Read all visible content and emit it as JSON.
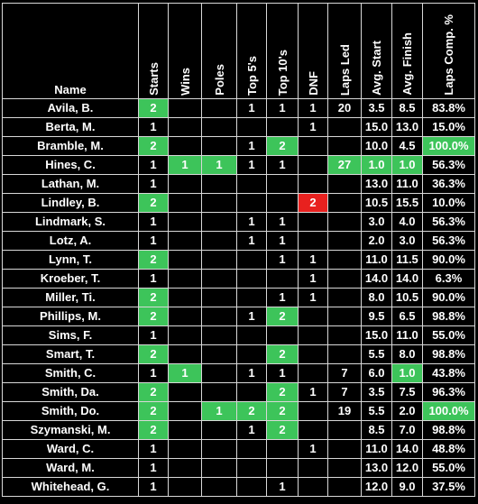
{
  "columns": [
    "Name",
    "Starts",
    "Wins",
    "Poles",
    "Top 5's",
    "Top 10's",
    "DNF",
    "Laps Led",
    "Avg. Start",
    "Avg. Finish",
    "Laps Comp. %"
  ],
  "highlight_colors": {
    "leader": "#3dc45a",
    "worst": "#e8211f"
  },
  "rows": [
    {
      "name": "Avila, B.",
      "starts": "2",
      "wins": "",
      "poles": "",
      "top5": "1",
      "top10": "1",
      "dnf": "1",
      "laps_led": "20",
      "avg_start": "3.5",
      "avg_finish": "8.5",
      "laps_comp": "83.8%",
      "hl": {
        "starts": "green"
      }
    },
    {
      "name": "Berta, M.",
      "starts": "1",
      "wins": "",
      "poles": "",
      "top5": "",
      "top10": "",
      "dnf": "1",
      "laps_led": "",
      "avg_start": "15.0",
      "avg_finish": "13.0",
      "laps_comp": "15.0%",
      "hl": {}
    },
    {
      "name": "Bramble, M.",
      "starts": "2",
      "wins": "",
      "poles": "",
      "top5": "1",
      "top10": "2",
      "dnf": "",
      "laps_led": "",
      "avg_start": "10.0",
      "avg_finish": "4.5",
      "laps_comp": "100.0%",
      "hl": {
        "starts": "green",
        "top10": "green",
        "laps_comp": "green"
      }
    },
    {
      "name": "Hines, C.",
      "starts": "1",
      "wins": "1",
      "poles": "1",
      "top5": "1",
      "top10": "1",
      "dnf": "",
      "laps_led": "27",
      "avg_start": "1.0",
      "avg_finish": "1.0",
      "laps_comp": "56.3%",
      "hl": {
        "wins": "green",
        "poles": "green",
        "laps_led": "green",
        "avg_start": "green",
        "avg_finish": "green"
      }
    },
    {
      "name": "Lathan, M.",
      "starts": "1",
      "wins": "",
      "poles": "",
      "top5": "",
      "top10": "",
      "dnf": "",
      "laps_led": "",
      "avg_start": "13.0",
      "avg_finish": "11.0",
      "laps_comp": "36.3%",
      "hl": {}
    },
    {
      "name": "Lindley, B.",
      "starts": "2",
      "wins": "",
      "poles": "",
      "top5": "",
      "top10": "",
      "dnf": "2",
      "laps_led": "",
      "avg_start": "10.5",
      "avg_finish": "15.5",
      "laps_comp": "10.0%",
      "hl": {
        "starts": "green",
        "dnf": "red"
      }
    },
    {
      "name": "Lindmark, S.",
      "starts": "1",
      "wins": "",
      "poles": "",
      "top5": "1",
      "top10": "1",
      "dnf": "",
      "laps_led": "",
      "avg_start": "3.0",
      "avg_finish": "4.0",
      "laps_comp": "56.3%",
      "hl": {}
    },
    {
      "name": "Lotz, A.",
      "starts": "1",
      "wins": "",
      "poles": "",
      "top5": "1",
      "top10": "1",
      "dnf": "",
      "laps_led": "",
      "avg_start": "2.0",
      "avg_finish": "3.0",
      "laps_comp": "56.3%",
      "hl": {}
    },
    {
      "name": "Lynn, T.",
      "starts": "2",
      "wins": "",
      "poles": "",
      "top5": "",
      "top10": "1",
      "dnf": "1",
      "laps_led": "",
      "avg_start": "11.0",
      "avg_finish": "11.5",
      "laps_comp": "90.0%",
      "hl": {
        "starts": "green"
      }
    },
    {
      "name": "Kroeber, T.",
      "starts": "1",
      "wins": "",
      "poles": "",
      "top5": "",
      "top10": "",
      "dnf": "1",
      "laps_led": "",
      "avg_start": "14.0",
      "avg_finish": "14.0",
      "laps_comp": "6.3%",
      "hl": {}
    },
    {
      "name": "Miller, Ti.",
      "starts": "2",
      "wins": "",
      "poles": "",
      "top5": "",
      "top10": "1",
      "dnf": "1",
      "laps_led": "",
      "avg_start": "8.0",
      "avg_finish": "10.5",
      "laps_comp": "90.0%",
      "hl": {
        "starts": "green"
      }
    },
    {
      "name": "Phillips, M.",
      "starts": "2",
      "wins": "",
      "poles": "",
      "top5": "1",
      "top10": "2",
      "dnf": "",
      "laps_led": "",
      "avg_start": "9.5",
      "avg_finish": "6.5",
      "laps_comp": "98.8%",
      "hl": {
        "starts": "green",
        "top10": "green"
      }
    },
    {
      "name": "Sims, F.",
      "starts": "1",
      "wins": "",
      "poles": "",
      "top5": "",
      "top10": "",
      "dnf": "",
      "laps_led": "",
      "avg_start": "15.0",
      "avg_finish": "11.0",
      "laps_comp": "55.0%",
      "hl": {}
    },
    {
      "name": "Smart, T.",
      "starts": "2",
      "wins": "",
      "poles": "",
      "top5": "",
      "top10": "2",
      "dnf": "",
      "laps_led": "",
      "avg_start": "5.5",
      "avg_finish": "8.0",
      "laps_comp": "98.8%",
      "hl": {
        "starts": "green",
        "top10": "green"
      }
    },
    {
      "name": "Smith, C.",
      "starts": "1",
      "wins": "1",
      "poles": "",
      "top5": "1",
      "top10": "1",
      "dnf": "",
      "laps_led": "7",
      "avg_start": "6.0",
      "avg_finish": "1.0",
      "laps_comp": "43.8%",
      "hl": {
        "wins": "green",
        "avg_finish": "green"
      }
    },
    {
      "name": "Smith, Da.",
      "starts": "2",
      "wins": "",
      "poles": "",
      "top5": "",
      "top10": "2",
      "dnf": "1",
      "laps_led": "7",
      "avg_start": "3.5",
      "avg_finish": "7.5",
      "laps_comp": "96.3%",
      "hl": {
        "starts": "green",
        "top10": "green"
      }
    },
    {
      "name": "Smith, Do.",
      "starts": "2",
      "wins": "",
      "poles": "1",
      "top5": "2",
      "top10": "2",
      "dnf": "",
      "laps_led": "19",
      "avg_start": "5.5",
      "avg_finish": "2.0",
      "laps_comp": "100.0%",
      "hl": {
        "starts": "green",
        "poles": "green",
        "top5": "green",
        "top10": "green",
        "laps_comp": "green"
      }
    },
    {
      "name": "Szymanski, M.",
      "starts": "2",
      "wins": "",
      "poles": "",
      "top5": "1",
      "top10": "2",
      "dnf": "",
      "laps_led": "",
      "avg_start": "8.5",
      "avg_finish": "7.0",
      "laps_comp": "98.8%",
      "hl": {
        "starts": "green",
        "top10": "green"
      }
    },
    {
      "name": "Ward, C.",
      "starts": "1",
      "wins": "",
      "poles": "",
      "top5": "",
      "top10": "",
      "dnf": "1",
      "laps_led": "",
      "avg_start": "11.0",
      "avg_finish": "14.0",
      "laps_comp": "48.8%",
      "hl": {}
    },
    {
      "name": "Ward, M.",
      "starts": "1",
      "wins": "",
      "poles": "",
      "top5": "",
      "top10": "",
      "dnf": "",
      "laps_led": "",
      "avg_start": "13.0",
      "avg_finish": "12.0",
      "laps_comp": "55.0%",
      "hl": {}
    },
    {
      "name": "Whitehead, G.",
      "starts": "1",
      "wins": "",
      "poles": "",
      "top5": "",
      "top10": "1",
      "dnf": "",
      "laps_led": "",
      "avg_start": "12.0",
      "avg_finish": "9.0",
      "laps_comp": "37.5%",
      "hl": {}
    }
  ]
}
